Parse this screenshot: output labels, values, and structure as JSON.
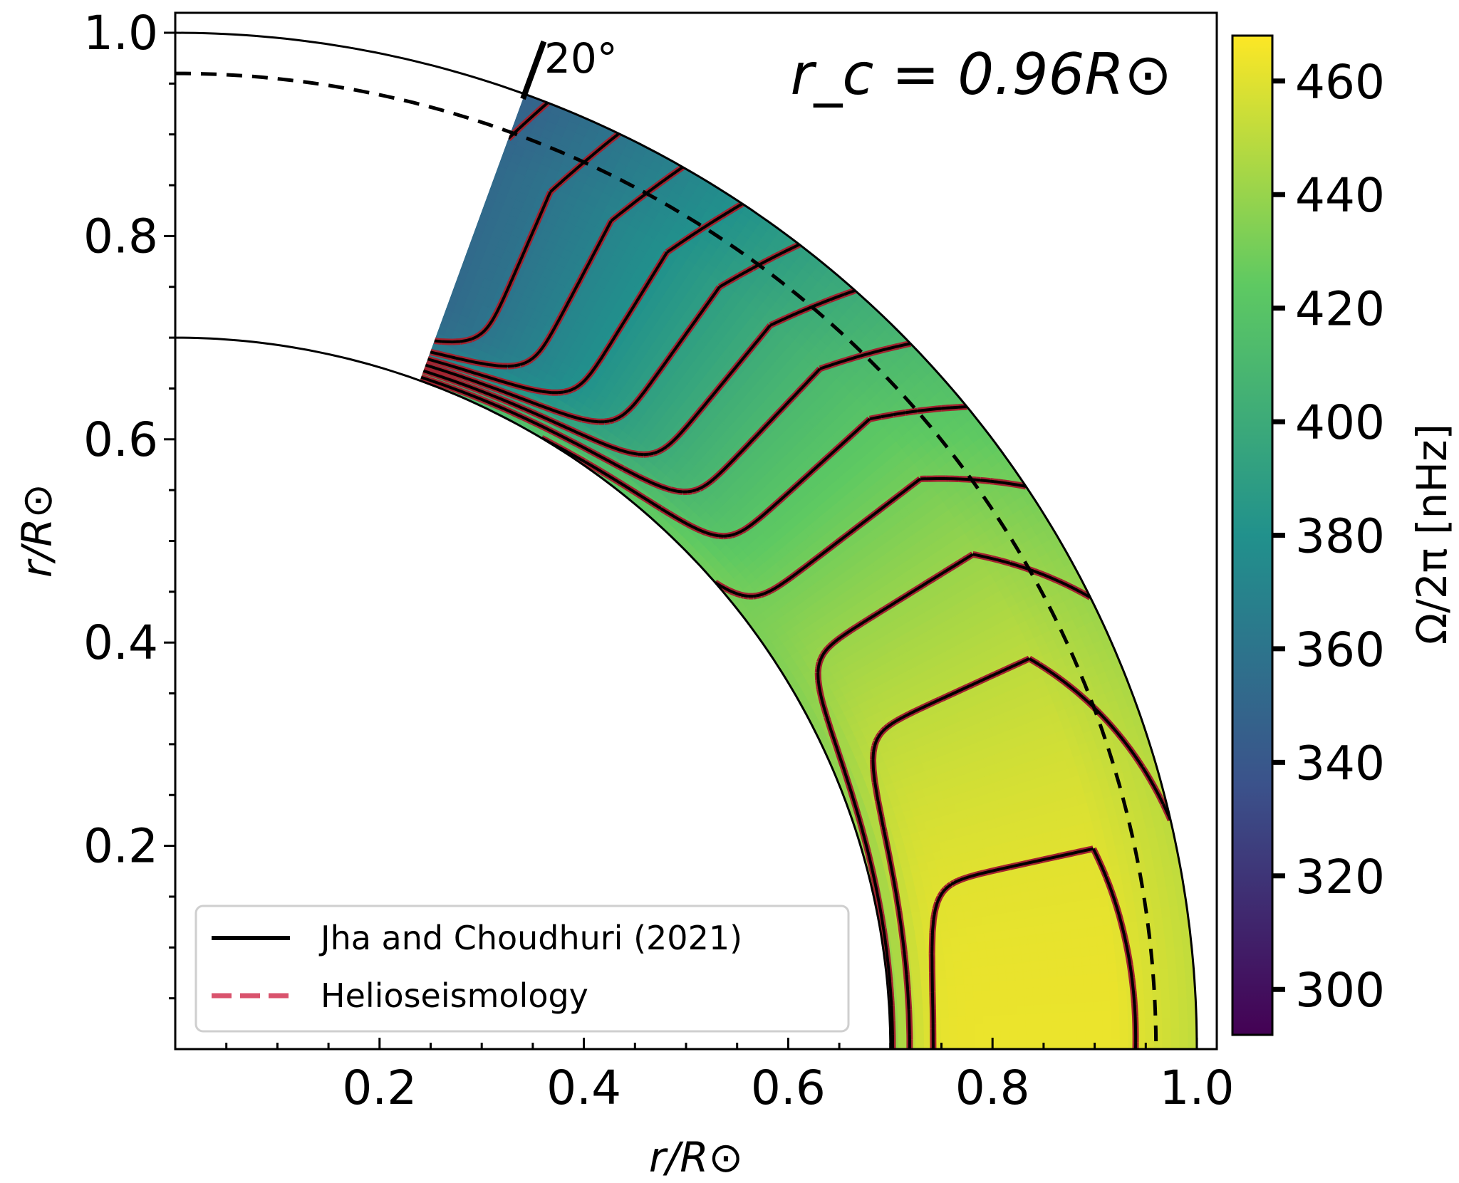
{
  "chart_data": {
    "type": "heatmap",
    "title": "r_c = 0.96R⊙",
    "annotation_angle": "20°",
    "xlabel": "r/R⊙",
    "ylabel": "r/R⊙",
    "xlim": [
      0,
      1.0
    ],
    "ylim": [
      0,
      1.0
    ],
    "xticks": [
      "0.2",
      "0.4",
      "0.6",
      "0.8",
      "1.0"
    ],
    "yticks": [
      "0.2",
      "0.4",
      "0.6",
      "0.8",
      "1.0"
    ],
    "colorbar": {
      "label": "Ω/2π [nHz]",
      "range": [
        292,
        468
      ],
      "ticks": [
        "300",
        "320",
        "340",
        "360",
        "380",
        "400",
        "420",
        "440",
        "460"
      ],
      "colormap": [
        "#440154",
        "#3b528b",
        "#21918c",
        "#5ec962",
        "#fde725"
      ]
    },
    "domain": {
      "r_inner": 0.7,
      "r_outer": 1.0,
      "r_c": 0.96,
      "colatitude_min_deg": 20,
      "colatitude_max_deg": 90
    },
    "contour_levels_nHz": [
      350,
      360,
      370,
      380,
      390,
      400,
      410,
      420,
      430,
      440,
      450,
      460
    ],
    "legend": {
      "placement": "lower-left",
      "entries": [
        {
          "label": "Jha and  Choudhuri (2021)",
          "style": "solid",
          "color": "#000000"
        },
        {
          "label": "Helioseismology",
          "style": "dashed",
          "color": "#d9536d"
        }
      ]
    }
  }
}
